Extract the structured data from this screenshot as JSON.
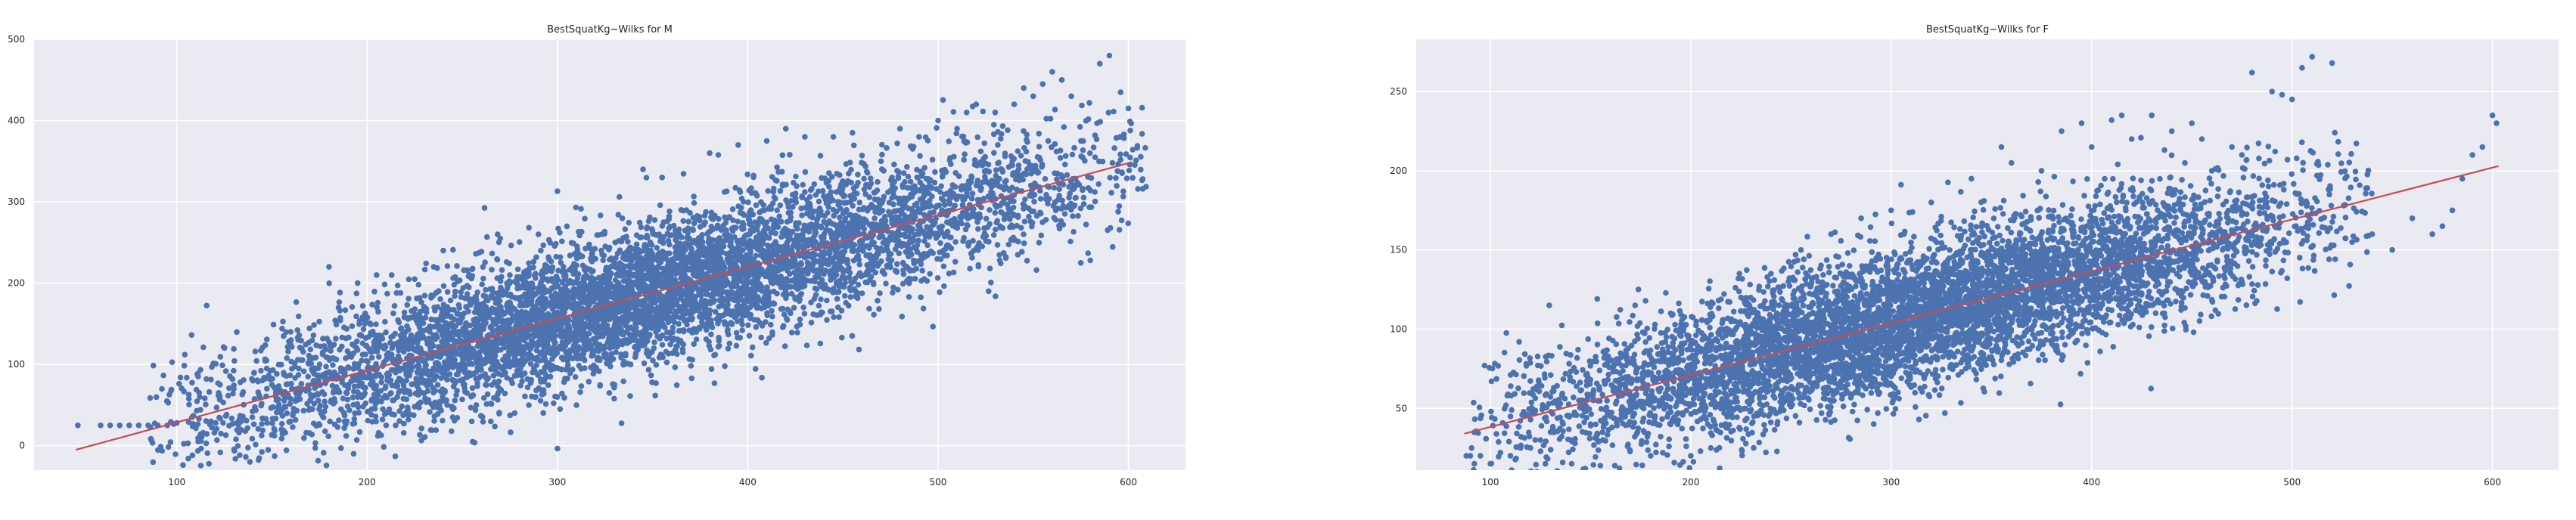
{
  "colors": {
    "plot_background": "#eaeaf2",
    "grid": "#ffffff",
    "points": "#4c72b0",
    "fit_line": "#c44e52",
    "text": "#262626"
  },
  "chart_data": [
    {
      "type": "scatter",
      "title": "BestSquatKg~Wilks for M",
      "xlabel": "",
      "ylabel": "",
      "xlim": [
        25,
        630
      ],
      "ylim": [
        -30,
        500
      ],
      "xticks": [
        100,
        200,
        300,
        400,
        500,
        600
      ],
      "yticks": [
        0,
        100,
        200,
        300,
        400,
        500
      ],
      "grid": true,
      "regression_line": {
        "x": [
          47,
          602
        ],
        "y": [
          -5,
          349
        ]
      },
      "cloud": {
        "x_range": [
          105,
          590
        ],
        "spread": 42,
        "regression": {
          "slope": 0.638,
          "intercept": -35
        }
      },
      "points": {
        "x": [
          48,
          60,
          65,
          70,
          75,
          80,
          85,
          90,
          95,
          100,
          108,
          112,
          118,
          122,
          130,
          140,
          150,
          155,
          160,
          175,
          180,
          185,
          195,
          205,
          210,
          215,
          225,
          235,
          240,
          245,
          255,
          265,
          270,
          275,
          285,
          290,
          300,
          305,
          310,
          320,
          330,
          345,
          355,
          365,
          380,
          395,
          410,
          420,
          430,
          445,
          455,
          470,
          480,
          490,
          500,
          510,
          515,
          520,
          530,
          540,
          545,
          550,
          555,
          560,
          565,
          570,
          575,
          580,
          585,
          590,
          600
        ],
        "y": [
          25,
          25,
          25,
          25,
          25,
          25,
          25,
          25,
          25,
          28,
          35,
          60,
          30,
          65,
          70,
          80,
          75,
          20,
          130,
          100,
          220,
          170,
          200,
          210,
          25,
          25,
          205,
          220,
          240,
          35,
          30,
          30,
          255,
          210,
          50,
          260,
          313,
          270,
          50,
          230,
          75,
          340,
          330,
          290,
          360,
          370,
          375,
          390,
          380,
          380,
          385,
          350,
          390,
          380,
          400,
          390,
          410,
          420,
          410,
          420,
          440,
          430,
          445,
          460,
          450,
          430,
          225,
          228,
          470,
          480,
          415
        ]
      }
    },
    {
      "type": "scatter",
      "title": "BestSquatKg~Wilks for F",
      "xlabel": "",
      "ylabel": "",
      "xlim": [
        63,
        633
      ],
      "ylim": [
        11,
        283
      ],
      "xticks": [
        100,
        200,
        300,
        400,
        500,
        600
      ],
      "yticks": [
        50,
        100,
        150,
        200,
        250
      ],
      "grid": true,
      "regression_line": {
        "x": [
          87,
          603
        ],
        "y": [
          34,
          203
        ]
      },
      "cloud": {
        "x_range": [
          110,
          520
        ],
        "spread": 22,
        "regression": {
          "slope": 0.328,
          "intercept": 5.5
        }
      },
      "points": {
        "x": [
          88,
          90,
          92,
          95,
          100,
          105,
          110,
          115,
          120,
          125,
          130,
          140,
          150,
          160,
          170,
          180,
          190,
          200,
          210,
          215,
          225,
          240,
          255,
          270,
          285,
          300,
          310,
          320,
          340,
          355,
          360,
          375,
          385,
          395,
          400,
          410,
          415,
          420,
          430,
          440,
          450,
          455,
          460,
          470,
          475,
          480,
          490,
          495,
          500,
          505,
          510,
          520,
          530,
          540,
          550,
          560,
          570,
          575,
          580,
          585,
          590,
          595,
          600,
          602
        ],
        "y": [
          20,
          20,
          15,
          20,
          15,
          22,
          20,
          25,
          25,
          30,
          35,
          30,
          40,
          45,
          50,
          20,
          110,
          20,
          25,
          100,
          120,
          135,
          150,
          160,
          170,
          175,
          120,
          180,
          195,
          215,
          205,
          200,
          225,
          230,
          215,
          232,
          235,
          220,
          235,
          225,
          230,
          220,
          200,
          215,
          210,
          262,
          250,
          248,
          245,
          265,
          272,
          268,
          155,
          160,
          150,
          170,
          160,
          165,
          175,
          195,
          210,
          215,
          235,
          230
        ]
      }
    }
  ]
}
